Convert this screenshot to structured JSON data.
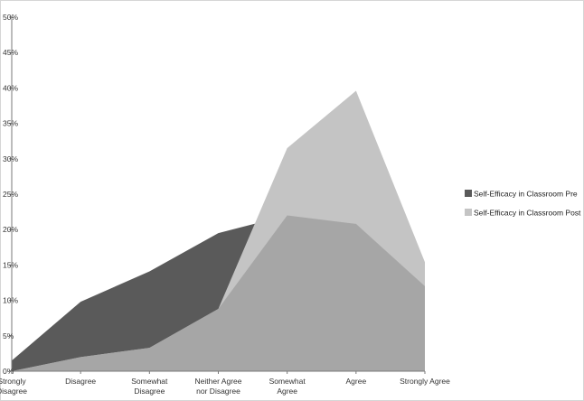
{
  "chart_data": {
    "type": "area",
    "title": "",
    "xlabel": "",
    "ylabel": "",
    "categories": [
      [
        "Strongly",
        "Disagree"
      ],
      [
        "Disagree"
      ],
      [
        "Somewhat",
        "Disagree"
      ],
      [
        "Neither Agree",
        "nor Disagree"
      ],
      [
        "Somewhat",
        "Agree"
      ],
      [
        "Agree"
      ],
      [
        "Strongly Agree"
      ]
    ],
    "ylim": [
      0,
      50
    ],
    "yticks": [
      0,
      5,
      10,
      15,
      20,
      25,
      30,
      35,
      40,
      45,
      50
    ],
    "ytick_suffix": "%",
    "grid": false,
    "legend_position": "right",
    "series": [
      {
        "name": "Self-Efficacy in Classroom Pre",
        "color": "#5a5a5a",
        "values": [
          1.5,
          9.8,
          14.1,
          19.5,
          22.0,
          20.8,
          12.0
        ]
      },
      {
        "name": "Self-Efficacy in Classroom Post",
        "color": "#c4c4c4",
        "values": [
          0.0,
          2.0,
          3.3,
          8.8,
          31.5,
          39.6,
          15.4
        ]
      }
    ],
    "overlap_color": "#a6a6a6"
  }
}
